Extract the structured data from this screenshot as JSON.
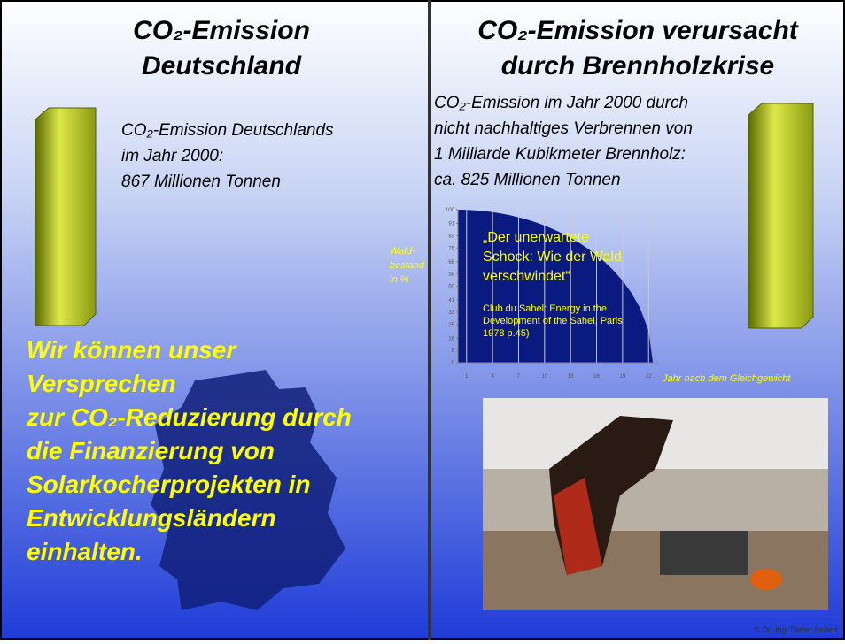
{
  "left": {
    "title": [
      "CO₂-Emission",
      "Deutschland"
    ],
    "text": [
      "CO₂-Emission Deutschlands",
      "im Jahr 2000:",
      "867 Millionen Tonnen"
    ],
    "slogan": [
      "Wir können unser",
      "Versprechen",
      "zur CO₂-Reduzierung durch",
      "die Finanzierung von",
      "Solarkocherprojekten in",
      "Entwicklungsländern",
      "einhalten."
    ]
  },
  "right": {
    "title": [
      "CO₂-Emission verursacht",
      "durch Brennholzkrise"
    ],
    "text": [
      "CO₂-Emission im Jahr 2000 durch",
      "nicht nachhaltiges Verbrennen von",
      "1 Milliarde Kubikmeter Brennholz:",
      "ca. 825 Millionen Tonnen"
    ],
    "credit": "© Dr.-Ing. Dieter Seifert"
  },
  "chart": {
    "type": "area",
    "ylabel": [
      "Wald-",
      "bestand",
      "in %"
    ],
    "xlabel": "Jahr nach dem Gleichgewicht",
    "quote": [
      "„Der unerwartete",
      "Schock: Wie der Wald",
      "verschwindet“"
    ],
    "source": [
      "Club du Sahel: Energy  in  the",
      "Development of  the Sahel, Paris",
      "1978 p.45)"
    ],
    "color": "#0a1a80",
    "x": [
      0,
      1,
      2,
      3,
      4,
      5,
      6,
      7,
      8,
      9,
      10,
      11,
      12,
      13,
      14,
      15,
      16,
      17,
      18,
      19,
      20,
      21,
      22,
      22.5
    ],
    "values": [
      100,
      99.9,
      99.6,
      99.1,
      98.4,
      97.5,
      96.4,
      95,
      93.5,
      91.7,
      89.6,
      87.2,
      84.6,
      81.6,
      78.3,
      74.5,
      70.3,
      65.5,
      60,
      53.6,
      45.8,
      35.9,
      21,
      0
    ],
    "xlim": [
      0,
      23
    ],
    "ylim": [
      0,
      100
    ],
    "xticks": [
      1,
      4,
      7,
      10,
      13,
      16,
      19,
      22
    ],
    "yticks": [
      0,
      8,
      16,
      25,
      33,
      41,
      50,
      58,
      66,
      75,
      83,
      91,
      100
    ],
    "grid": true
  }
}
